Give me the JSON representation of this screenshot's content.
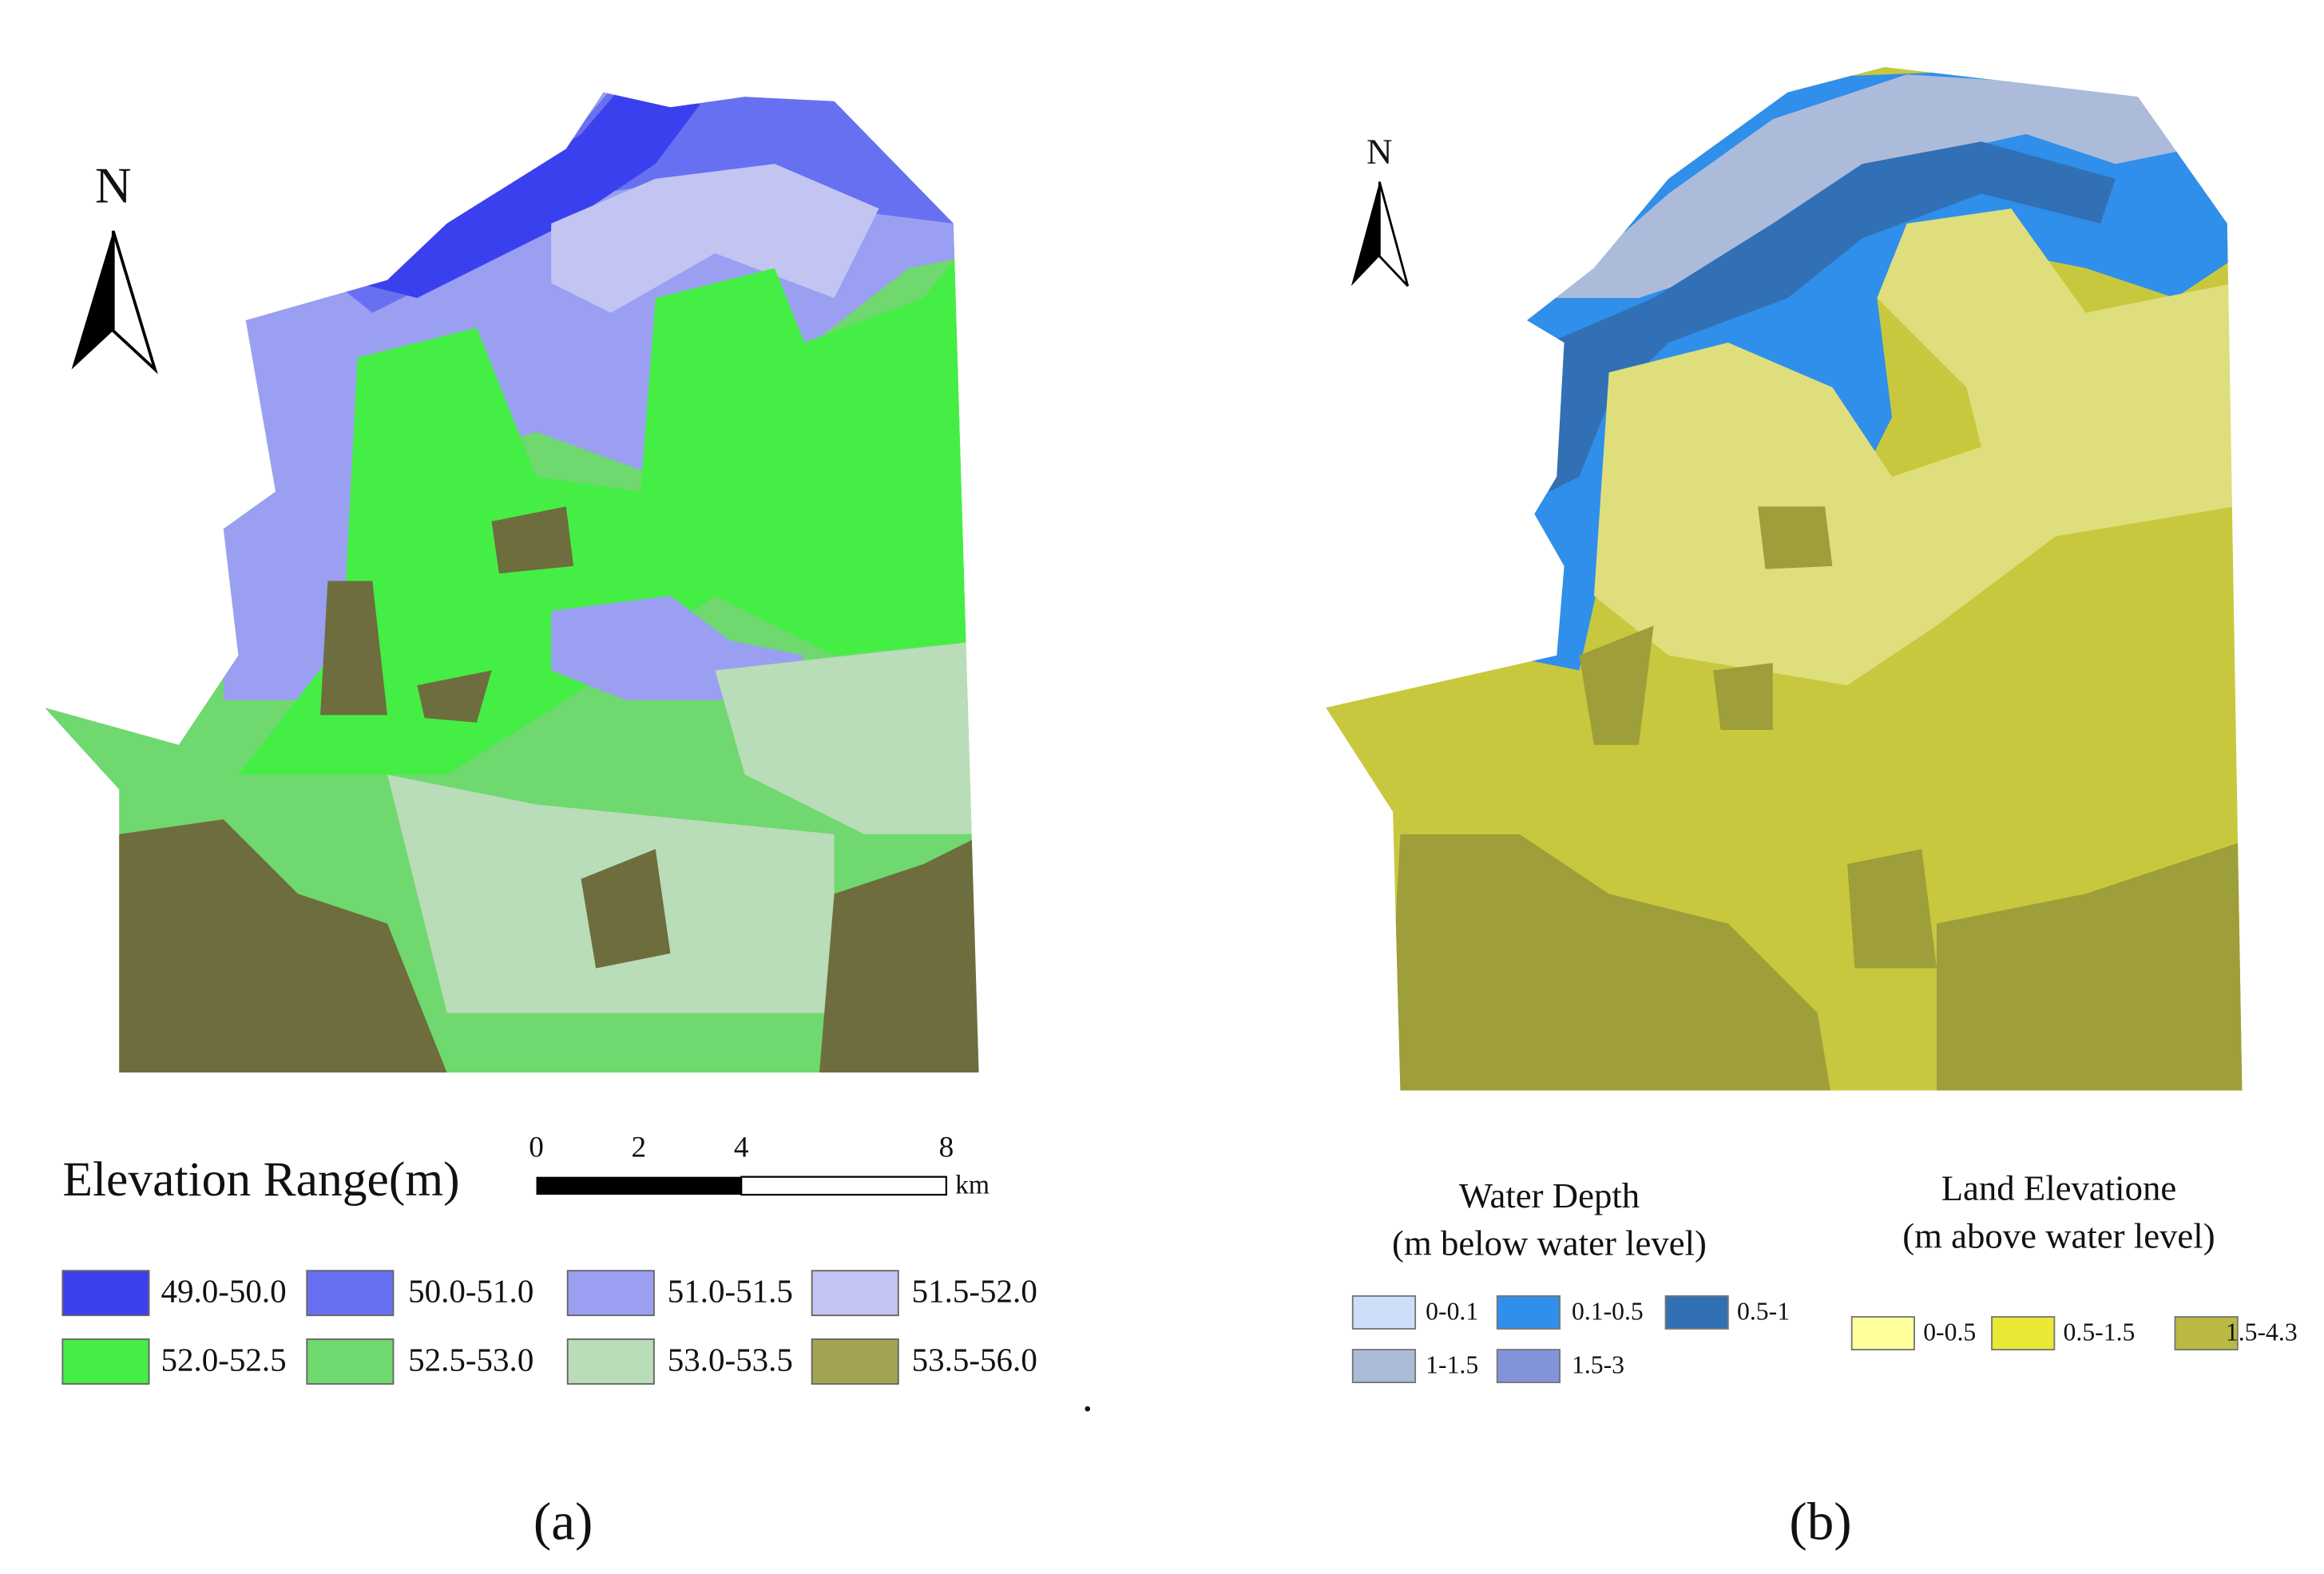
{
  "panels": [
    {
      "caption": "(a)",
      "north": "N",
      "legend_title": "Elevation Range(m)",
      "scale_ticks": [
        0,
        2,
        4,
        8
      ],
      "scale_unit": "km",
      "legend": [
        {
          "label": "49.0-50.0",
          "color": "#3b40ef"
        },
        {
          "label": "50.0-51.0",
          "color": "#6870f2"
        },
        {
          "label": "51.0-51.5",
          "color": "#9a9ff2"
        },
        {
          "label": "51.5-52.0",
          "color": "#c2c5f2"
        },
        {
          "label": "52.0-52.5",
          "color": "#45ee45"
        },
        {
          "label": "52.5-53.0",
          "color": "#6fd86f"
        },
        {
          "label": "53.0-53.5",
          "color": "#b9dcb9"
        },
        {
          "label": "53.5-56.0",
          "color": "#a3a352"
        }
      ]
    },
    {
      "caption": "(b)",
      "north": "N",
      "legends": [
        {
          "title": [
            "Water Depth",
            "(m below water level)"
          ],
          "items": [
            {
              "label": "0-0.1",
              "color": "#cddff8"
            },
            {
              "label": "0.1-0.5",
              "color": "#2f8fea"
            },
            {
              "label": "0.5-1",
              "color": "#3170b4"
            },
            {
              "label": "1-1.5",
              "color": "#adbbdb"
            },
            {
              "label": "1.5-3",
              "color": "#8393da"
            }
          ]
        },
        {
          "title": [
            "Land Elevatione",
            "(m above water level)"
          ],
          "items": [
            {
              "label": "0-0.5",
              "color": "#ffff9c"
            },
            {
              "label": "0.5-1.5",
              "color": "#e9e935"
            },
            {
              "label": "1.5-4.3",
              "color": "#b9b944"
            }
          ]
        }
      ]
    }
  ],
  "separator": "."
}
